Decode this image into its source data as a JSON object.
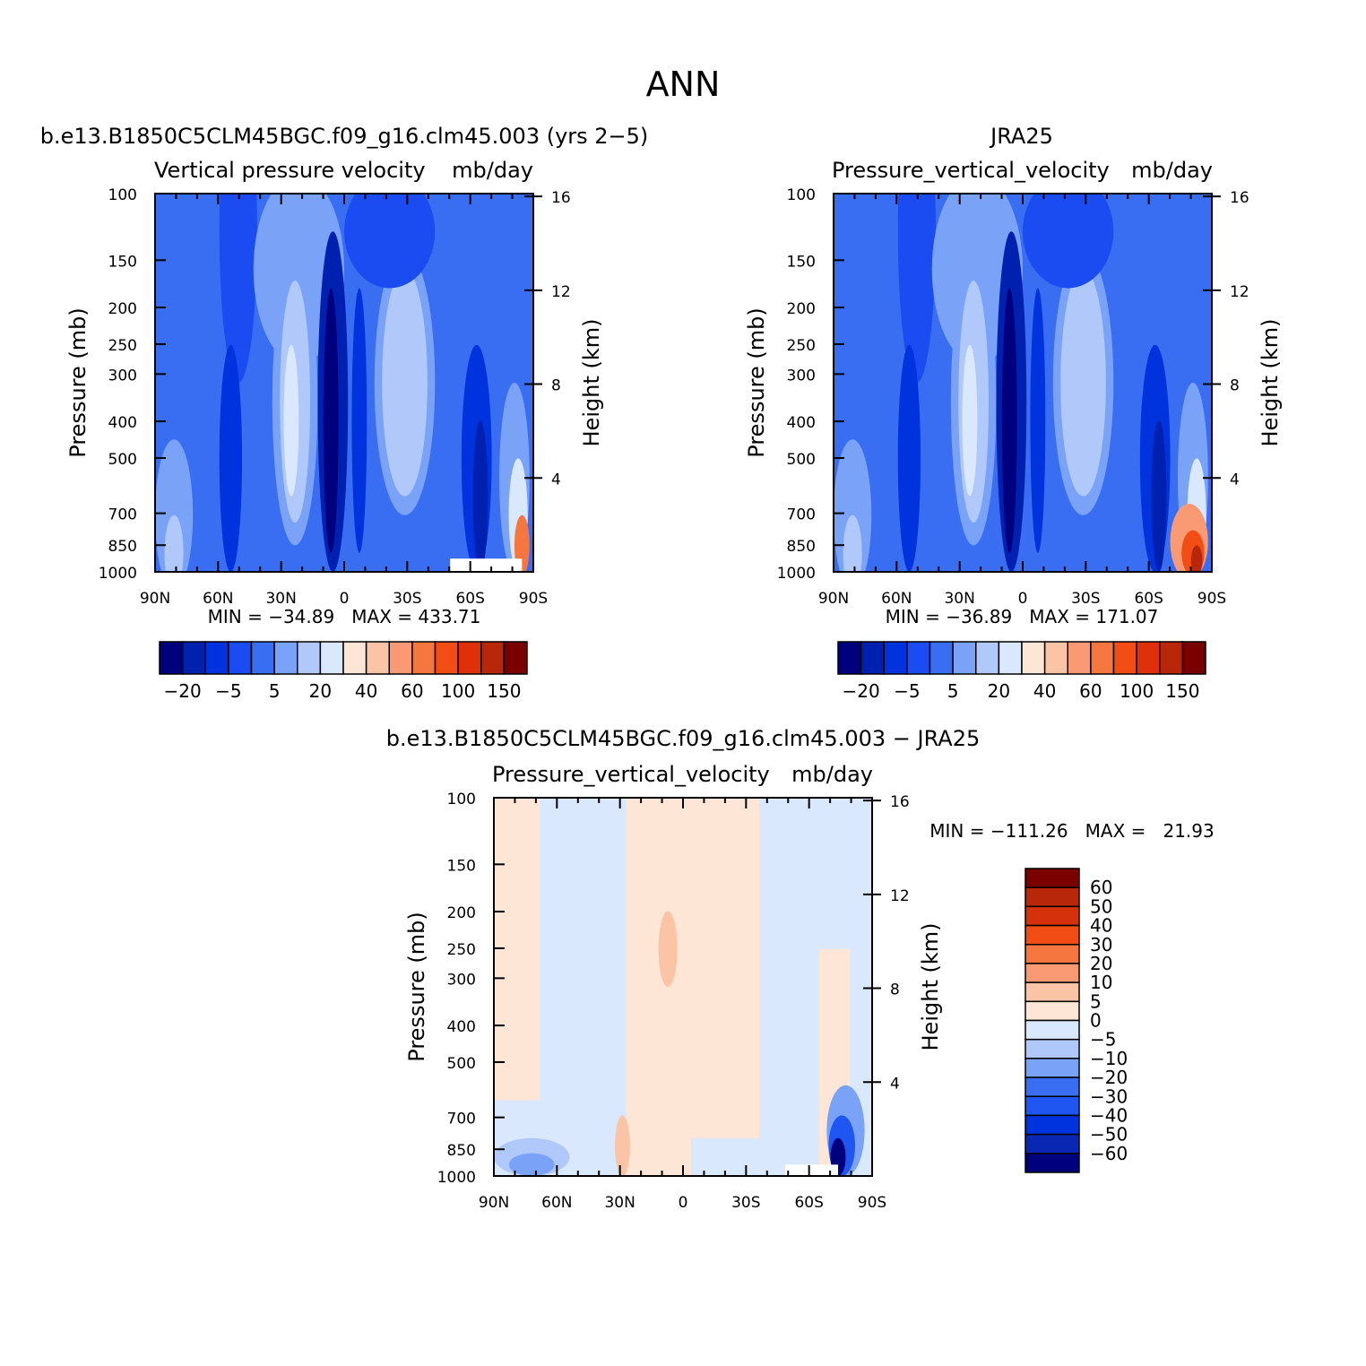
{
  "figure_title": "ANN",
  "colors": {
    "model_obs_scale": [
      "#00007f",
      "#0020b0",
      "#0033dd",
      "#1a4cf2",
      "#3a6ef2",
      "#7aa3f7",
      "#b0c8fa",
      "#d9e8fd",
      "#fde6d6",
      "#fcc4a6",
      "#f99a74",
      "#f5763f",
      "#f24d14",
      "#e0300b",
      "#b8270a",
      "#7a0000"
    ],
    "diff_scale": [
      "#00007f",
      "#0a27b3",
      "#0033dd",
      "#1f55f0",
      "#3a6ef2",
      "#7aa3f7",
      "#b0c8fa",
      "#d9e8fd",
      "#fde6d6",
      "#fcc4a6",
      "#f99a74",
      "#f5763f",
      "#f24d14",
      "#d5320b",
      "#b8270a",
      "#7a0000"
    ]
  },
  "chart_data": [
    {
      "type": "heatmap",
      "case_title": "b.e13.B1850C5CLM45BGC.f09_g16.clm45.003 (yrs 2−5)",
      "variable": "Vertical pressure velocity",
      "units": "mb/day",
      "xlabel": "",
      "ylabel": "Pressure (mb)",
      "ylabel_right": "Height (km)",
      "x_ticks": [
        "90N",
        "60N",
        "30N",
        "0",
        "30S",
        "60S",
        "90S"
      ],
      "y_ticks": [
        100,
        150,
        200,
        250,
        300,
        400,
        500,
        700,
        850,
        1000
      ],
      "y_ticks_right": [
        16,
        12,
        8,
        4
      ],
      "min_max_label": "MIN = −34.89   MAX = 433.71",
      "min": -34.89,
      "max": 433.71,
      "colorbar_labels": [
        "−20",
        "−5",
        "5",
        "20",
        "40",
        "60",
        "100",
        "150"
      ]
    },
    {
      "type": "heatmap",
      "case_title": "JRA25",
      "variable": "Pressure_vertical_velocity",
      "units": "mb/day",
      "xlabel": "",
      "ylabel": "Pressure (mb)",
      "ylabel_right": "Height (km)",
      "x_ticks": [
        "90N",
        "60N",
        "30N",
        "0",
        "30S",
        "60S",
        "90S"
      ],
      "y_ticks": [
        100,
        150,
        200,
        250,
        300,
        400,
        500,
        700,
        850,
        1000
      ],
      "y_ticks_right": [
        16,
        12,
        8,
        4
      ],
      "min_max_label": "MIN = −36.89   MAX = 171.07",
      "min": -36.89,
      "max": 171.07,
      "colorbar_labels": [
        "−20",
        "−5",
        "5",
        "20",
        "40",
        "60",
        "100",
        "150"
      ]
    },
    {
      "type": "heatmap",
      "case_title": "b.e13.B1850C5CLM45BGC.f09_g16.clm45.003 − JRA25",
      "variable": "Pressure_vertical_velocity",
      "units": "mb/day",
      "xlabel": "",
      "ylabel": "Pressure (mb)",
      "ylabel_right": "Height (km)",
      "x_ticks": [
        "90N",
        "60N",
        "30N",
        "0",
        "30S",
        "60S",
        "90S"
      ],
      "y_ticks": [
        100,
        150,
        200,
        250,
        300,
        400,
        500,
        700,
        850,
        1000
      ],
      "y_ticks_right": [
        16,
        12,
        8,
        4
      ],
      "min_max_label": "MIN = −111.26   MAX =   21.93",
      "min": -111.26,
      "max": 21.93,
      "colorbar_labels": [
        "60",
        "50",
        "40",
        "30",
        "20",
        "10",
        "5",
        "0",
        "−5",
        "−10",
        "−20",
        "−30",
        "−40",
        "−50",
        "−60"
      ]
    }
  ]
}
